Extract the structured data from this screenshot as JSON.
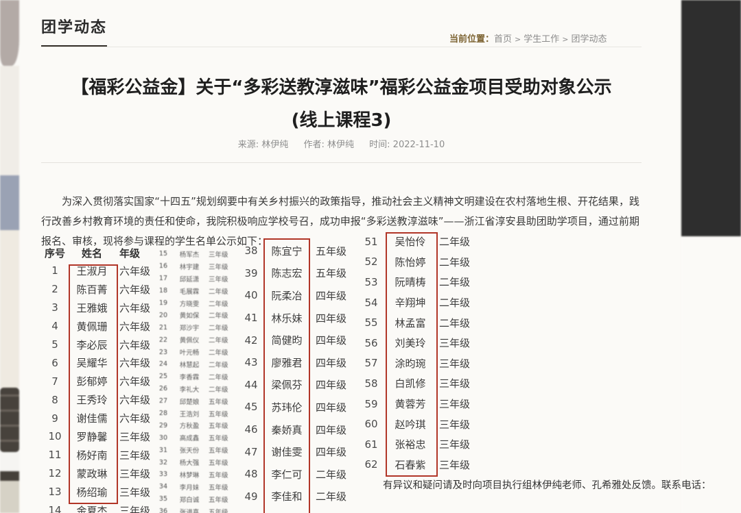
{
  "page": {
    "section_title": "团学动态",
    "breadcrumb": {
      "label": "当前位置：",
      "separator": ">",
      "items": [
        "首页",
        "学生工作",
        "团学动态"
      ]
    }
  },
  "article": {
    "title_line1": "【福彩公益金】关于“多彩送教淳滋味”福彩公益金项目受助对象公示",
    "title_line2": "(线上课程3)",
    "meta": {
      "source_label": "来源:",
      "source": "林伊纯",
      "author_label": "作者:",
      "author": "林伊纯",
      "time_label": "时间:",
      "time": "2022-11-10"
    },
    "paragraph": "为深入贯彻落实国家“十四五”规划纲要中有关乡村振兴的政策指导，推动社会主义精神文明建设在农村落地生根、开花结果，践行改善乡村教育环境的责任和使命，我院积极响应学校号召，成功申报“多彩送教淳滋味”——浙江省淳安县助团助学项目，通过前期报名、审核，现将参与课程的学生名单公示如下：",
    "note": "有异议和疑问请及时向项目执行组林伊纯老师、孔希雅处反馈。联系电话："
  },
  "colors": {
    "highlight_box": "#b13527",
    "breadcrumb_label": "#7d6433",
    "heading_underline": "#35302a"
  },
  "roster": {
    "headers": [
      "序号",
      "姓名",
      "年级"
    ],
    "column1": [
      {
        "no": "1",
        "name": "王淑月",
        "grade": "六年级"
      },
      {
        "no": "2",
        "name": "陈百菁",
        "grade": "六年级"
      },
      {
        "no": "3",
        "name": "王雅娥",
        "grade": "六年级"
      },
      {
        "no": "4",
        "name": "黄佩珊",
        "grade": "六年级"
      },
      {
        "no": "5",
        "name": "李必辰",
        "grade": "六年级"
      },
      {
        "no": "6",
        "name": "吴耀华",
        "grade": "六年级"
      },
      {
        "no": "7",
        "name": "彭郁婷",
        "grade": "六年级"
      },
      {
        "no": "8",
        "name": "王秀玲",
        "grade": "六年级"
      },
      {
        "no": "9",
        "name": "谢佳儒",
        "grade": "六年级"
      },
      {
        "no": "10",
        "name": "罗静馨",
        "grade": "三年级"
      },
      {
        "no": "11",
        "name": "杨好南",
        "grade": "三年级"
      },
      {
        "no": "12",
        "name": "蒙政琳",
        "grade": "三年级"
      },
      {
        "no": "13",
        "name": "杨绍瑜",
        "grade": "三年级"
      },
      {
        "no": "14",
        "name": "金夏杰",
        "grade": "三年级"
      }
    ],
    "column2_small": [
      {
        "no": "15",
        "name": "杨军杰",
        "grade": "三年级"
      },
      {
        "no": "16",
        "name": "林宇建",
        "grade": "三年级"
      },
      {
        "no": "17",
        "name": "邱延潇",
        "grade": "三年级"
      },
      {
        "no": "18",
        "name": "毛展霖",
        "grade": "二年级"
      },
      {
        "no": "19",
        "name": "方晓雯",
        "grade": "二年级"
      },
      {
        "no": "20",
        "name": "黄如保",
        "grade": "二年级"
      },
      {
        "no": "21",
        "name": "郑沙宇",
        "grade": "二年级"
      },
      {
        "no": "22",
        "name": "黄佩仪",
        "grade": "二年级"
      },
      {
        "no": "23",
        "name": "叶元畅",
        "grade": "二年级"
      },
      {
        "no": "24",
        "name": "林慧起",
        "grade": "二年级"
      },
      {
        "no": "25",
        "name": "李香霖",
        "grade": "二年级"
      },
      {
        "no": "26",
        "name": "李礼大",
        "grade": "二年级"
      },
      {
        "no": "27",
        "name": "邱楚娘",
        "grade": "五年级"
      },
      {
        "no": "28",
        "name": "王浩刘",
        "grade": "五年级"
      },
      {
        "no": "29",
        "name": "方秋盈",
        "grade": "五年级"
      },
      {
        "no": "30",
        "name": "高成鑫",
        "grade": "五年级"
      },
      {
        "no": "31",
        "name": "张天份",
        "grade": "五年级"
      },
      {
        "no": "32",
        "name": "杨大强",
        "grade": "五年级"
      },
      {
        "no": "33",
        "name": "林梦琳",
        "grade": "五年级"
      },
      {
        "no": "34",
        "name": "李月妹",
        "grade": "五年级"
      },
      {
        "no": "35",
        "name": "郑白诚",
        "grade": "五年级"
      },
      {
        "no": "36",
        "name": "张进喜",
        "grade": "五年级"
      }
    ],
    "column3": [
      {
        "no": "38",
        "name": "陈宜宁",
        "grade": "五年级"
      },
      {
        "no": "39",
        "name": "陈志宏",
        "grade": "五年级"
      },
      {
        "no": "40",
        "name": "阮柔冶",
        "grade": "四年级"
      },
      {
        "no": "41",
        "name": "林乐妹",
        "grade": "四年级"
      },
      {
        "no": "42",
        "name": "简健昀",
        "grade": "四年级"
      },
      {
        "no": "43",
        "name": "廖雅君",
        "grade": "四年级"
      },
      {
        "no": "44",
        "name": "梁佩芬",
        "grade": "四年级"
      },
      {
        "no": "45",
        "name": "苏玮伦",
        "grade": "四年级"
      },
      {
        "no": "46",
        "name": "秦娇真",
        "grade": "四年级"
      },
      {
        "no": "47",
        "name": "谢佳雯",
        "grade": "四年级"
      },
      {
        "no": "48",
        "name": "李仁可",
        "grade": "二年级"
      },
      {
        "no": "49",
        "name": "李佳和",
        "grade": "二年级"
      }
    ],
    "column4": [
      {
        "no": "51",
        "name": "吴怡伶",
        "grade": "二年级"
      },
      {
        "no": "52",
        "name": "陈怡婷",
        "grade": "二年级"
      },
      {
        "no": "53",
        "name": "阮晴梼",
        "grade": "二年级"
      },
      {
        "no": "54",
        "name": "辛翔坤",
        "grade": "二年级"
      },
      {
        "no": "55",
        "name": "林孟富",
        "grade": "二年级"
      },
      {
        "no": "56",
        "name": "刘美玲",
        "grade": "三年级"
      },
      {
        "no": "57",
        "name": "涂昀琬",
        "grade": "三年级"
      },
      {
        "no": "58",
        "name": "白凯修",
        "grade": "三年级"
      },
      {
        "no": "59",
        "name": "黄蓉芳",
        "grade": "三年级"
      },
      {
        "no": "60",
        "name": "赵吟琪",
        "grade": "三年级"
      },
      {
        "no": "61",
        "name": "张裕忠",
        "grade": "三年级"
      },
      {
        "no": "62",
        "name": "石春紫",
        "grade": "三年级"
      }
    ]
  }
}
